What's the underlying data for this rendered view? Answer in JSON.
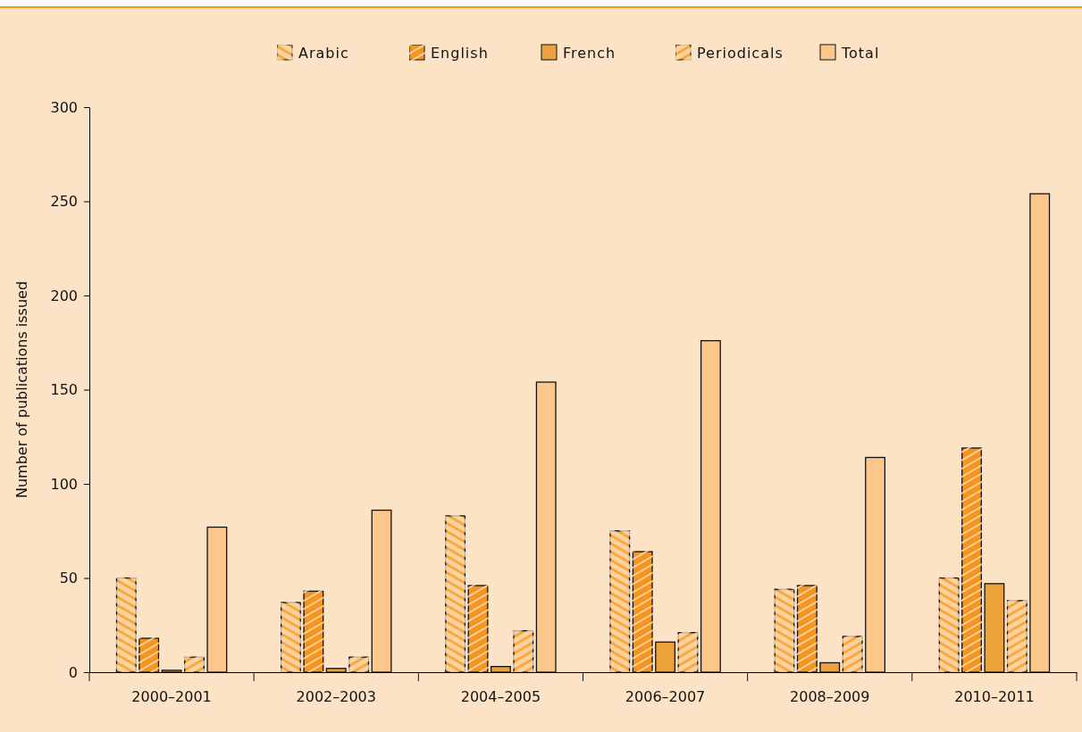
{
  "chart_data": {
    "type": "bar",
    "ylabel": "Number of publications issued",
    "categories": [
      "2000–2001",
      "2002–2003",
      "2004–2005",
      "2006–2007",
      "2008–2009",
      "2010–2011"
    ],
    "series": [
      {
        "name": "Arabic",
        "color": "#f9a73e",
        "values": [
          50,
          37,
          83,
          75,
          44,
          50
        ]
      },
      {
        "name": "English",
        "color": "#f7941d",
        "values": [
          18,
          43,
          46,
          64,
          46,
          119
        ]
      },
      {
        "name": "French",
        "color": "#eca13a",
        "values": [
          1,
          2,
          3,
          16,
          5,
          47
        ]
      },
      {
        "name": "Periodicals",
        "color": "#f9a73e",
        "values": [
          8,
          8,
          22,
          21,
          19,
          38
        ]
      },
      {
        "name": "Total",
        "color": "#fdc68a",
        "values": [
          77,
          86,
          154,
          176,
          114,
          254
        ]
      }
    ],
    "ylim": [
      0,
      300
    ],
    "yticks": [
      0,
      50,
      100,
      150,
      200,
      250,
      300
    ],
    "grid": false,
    "legend": "top"
  }
}
